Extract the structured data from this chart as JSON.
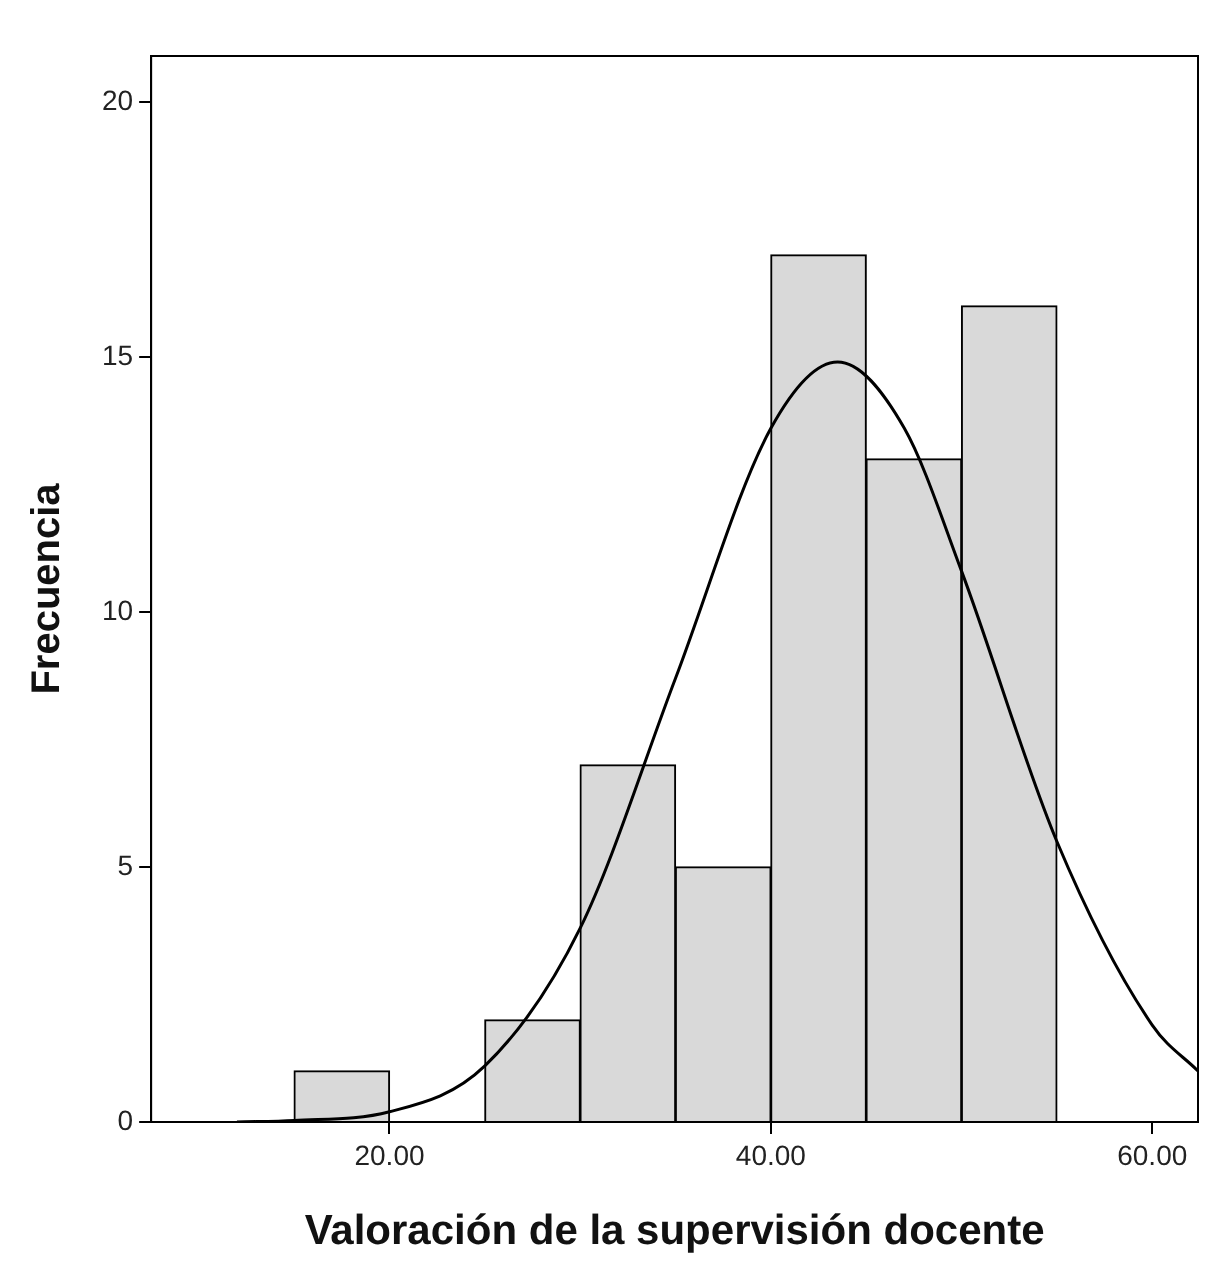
{
  "chart_data": {
    "type": "histogram",
    "xlabel": "Valoración de la supervisión docente",
    "ylabel": "Frecuencia",
    "bins": [
      15,
      20,
      25,
      30,
      35,
      40,
      45,
      50,
      55
    ],
    "values": [
      1,
      0,
      2,
      7,
      5,
      17,
      13,
      16
    ],
    "color": "#d9d9d9",
    "series": [
      {
        "type": "line",
        "color": "#000000",
        "x": [
          12,
          15,
          20,
          25,
          30,
          35,
          40,
          43.5,
          47,
          50,
          55,
          60,
          62.4
        ],
        "values": [
          0,
          0.03,
          0.2,
          1.1,
          3.8,
          8.7,
          13.6,
          14.9,
          13.6,
          10.8,
          5.5,
          1.9,
          1.0
        ]
      }
    ],
    "xlim": [
      7.5,
      62.4
    ],
    "ylim": [
      0,
      20.9
    ],
    "xticks": [
      {
        "value": 20,
        "label": "20.00"
      },
      {
        "value": 40,
        "label": "40.00"
      },
      {
        "value": 60,
        "label": "60.00"
      }
    ],
    "yticks": [
      0,
      5,
      10,
      15,
      20
    ],
    "grid": false,
    "legend": false,
    "marker": "none",
    "line_style": "solid"
  }
}
